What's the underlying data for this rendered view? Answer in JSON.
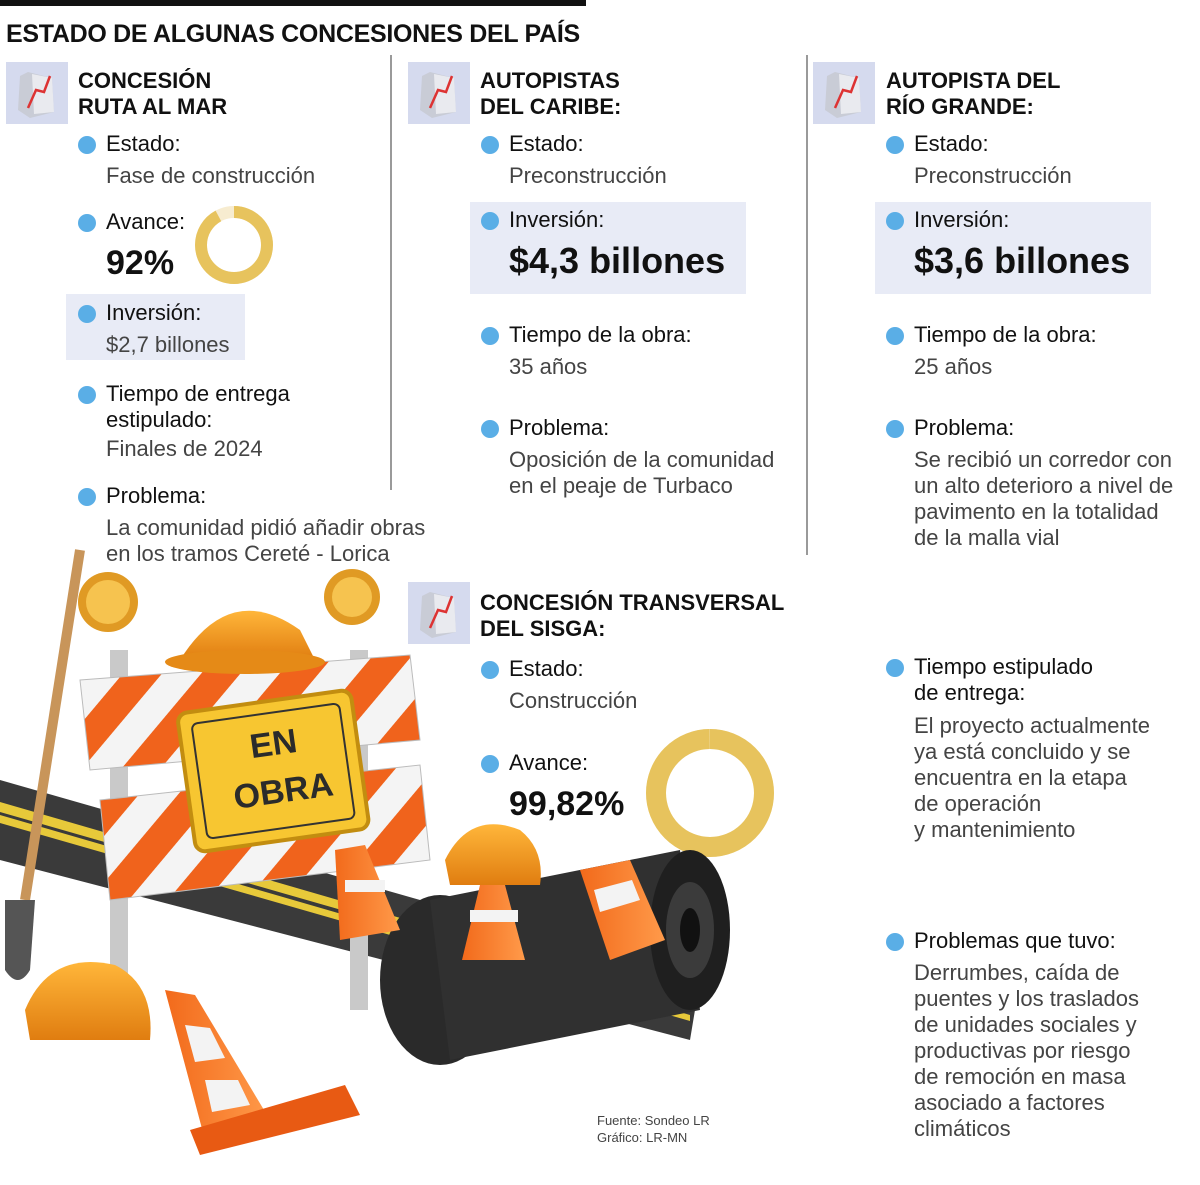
{
  "title": "ESTADO DE ALGUNAS CONCESIONES DEL PAÍS",
  "colors": {
    "bullet": "#5aaee6",
    "donut": "#e7c35d",
    "highlight": "#e8ebf6",
    "divider": "#9a9a9a"
  },
  "icons": {
    "card_icon": "line-chart-icon",
    "bullet": "bullet-dot-icon"
  },
  "cards": {
    "ruta_mar": {
      "title1": "CONCESIÓN",
      "title2": "RUTA AL MAR",
      "estado_label": "Estado:",
      "estado_value": "Fase de construcción",
      "avance_label": "Avance:",
      "avance_value": "92%",
      "avance_fraction": 0.92,
      "inversion_label": "Inversión:",
      "inversion_value": "$2,7 billones",
      "entrega_label1": "Tiempo de entrega",
      "entrega_label2": "estipulado:",
      "entrega_value": "Finales de 2024",
      "problema_label": "Problema:",
      "problema_line1": "La comunidad pidió añadir obras",
      "problema_line2": "en los tramos Cereté - Lorica"
    },
    "caribe": {
      "title1": "AUTOPISTAS",
      "title2": "DEL CARIBE:",
      "estado_label": "Estado:",
      "estado_value": "Preconstrucción",
      "inversion_label": "Inversión:",
      "inversion_value": "$4,3 billones",
      "tiempo_label": "Tiempo de la obra:",
      "tiempo_value": "35 años",
      "problema_label": "Problema:",
      "problema_line1": "Oposición de la comunidad",
      "problema_line2": "en el peaje de Turbaco"
    },
    "rio_grande": {
      "title1": "AUTOPISTA DEL",
      "title2": "RÍO GRANDE:",
      "estado_label": "Estado:",
      "estado_value": "Preconstrucción",
      "inversion_label": "Inversión:",
      "inversion_value": "$3,6 billones",
      "tiempo_label": "Tiempo de la obra:",
      "tiempo_value": "25 años",
      "problema_label": "Problema:",
      "problema_line1": "Se recibió un corredor con",
      "problema_line2": "un alto deterioro a nivel de",
      "problema_line3": "pavimento en la totalidad",
      "problema_line4": "de la malla vial"
    },
    "sisga": {
      "title1": "CONCESIÓN TRANSVERSAL",
      "title2": "DEL SISGA:",
      "estado_label": "Estado:",
      "estado_value": "Construcción",
      "avance_label": "Avance:",
      "avance_value": "99,82%",
      "avance_fraction": 0.9982,
      "entrega_label1": "Tiempo estipulado",
      "entrega_label2": "de entrega:",
      "entrega_line1": "El proyecto actualmente",
      "entrega_line2": "ya está concluido y se",
      "entrega_line3": "encuentra en la etapa",
      "entrega_line4": "de operación",
      "entrega_line5": "y mantenimiento",
      "problemas_label": "Problemas que tuvo:",
      "problemas_line1": "Derrumbes, caída de",
      "problemas_line2": "puentes y los traslados",
      "problemas_line3": "de unidades sociales y",
      "problemas_line4": "productivas por riesgo",
      "problemas_line5": "de remoción en masa",
      "problemas_line6": "asociado a factores",
      "problemas_line7": "climáticos"
    }
  },
  "sign_text1": "EN",
  "sign_text2": "OBRA",
  "source": "Fuente: Sondeo LR",
  "graphic": "Gráfico: LR-MN"
}
